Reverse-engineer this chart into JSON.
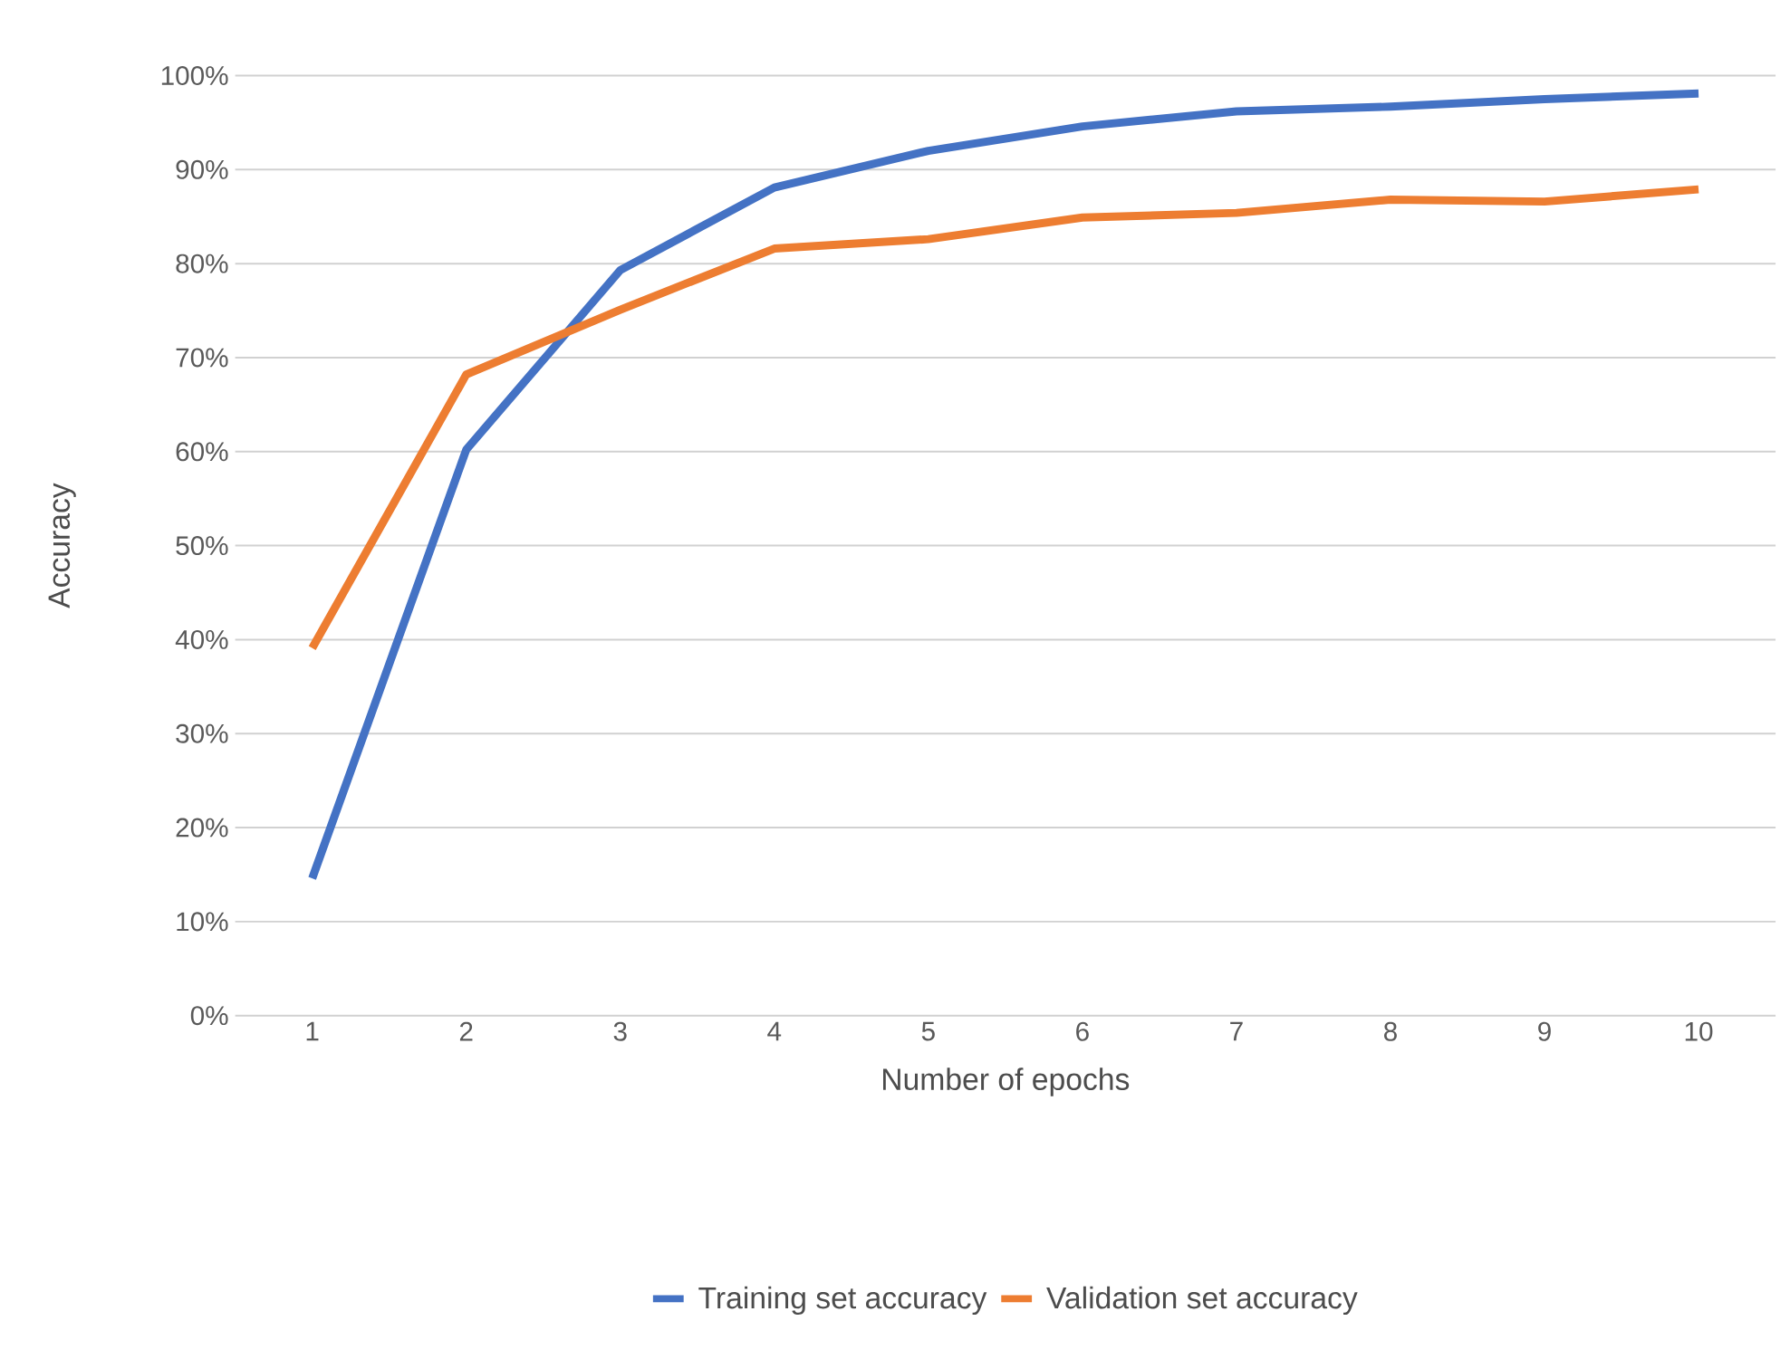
{
  "chart_data": {
    "type": "line",
    "xlabel": "Number of epochs",
    "ylabel": "Accuracy",
    "categories": [
      "1",
      "2",
      "3",
      "4",
      "5",
      "6",
      "7",
      "8",
      "9",
      "10"
    ],
    "series": [
      {
        "name": "Training set accuracy",
        "color": "#4472c4",
        "values": [
          14.6,
          60.2,
          79.3,
          88.1,
          92.0,
          94.6,
          96.2,
          96.7,
          97.5,
          98.1
        ]
      },
      {
        "name": "Validation set accuracy",
        "color": "#ed7d31",
        "values": [
          39.1,
          68.2,
          75.1,
          81.6,
          82.6,
          84.9,
          85.4,
          86.8,
          86.6,
          87.9
        ]
      }
    ],
    "ylim": [
      0,
      100
    ],
    "yticks": [
      {
        "value": 0,
        "label": "0%"
      },
      {
        "value": 10,
        "label": "10%"
      },
      {
        "value": 20,
        "label": "20%"
      },
      {
        "value": 30,
        "label": "30%"
      },
      {
        "value": 40,
        "label": "40%"
      },
      {
        "value": 50,
        "label": "50%"
      },
      {
        "value": 60,
        "label": "60%"
      },
      {
        "value": 70,
        "label": "70%"
      },
      {
        "value": 80,
        "label": "80%"
      },
      {
        "value": 90,
        "label": "90%"
      },
      {
        "value": 100,
        "label": "100%"
      }
    ],
    "grid": "y",
    "legend": "bottom",
    "marker": "none",
    "line_style": "solid"
  }
}
